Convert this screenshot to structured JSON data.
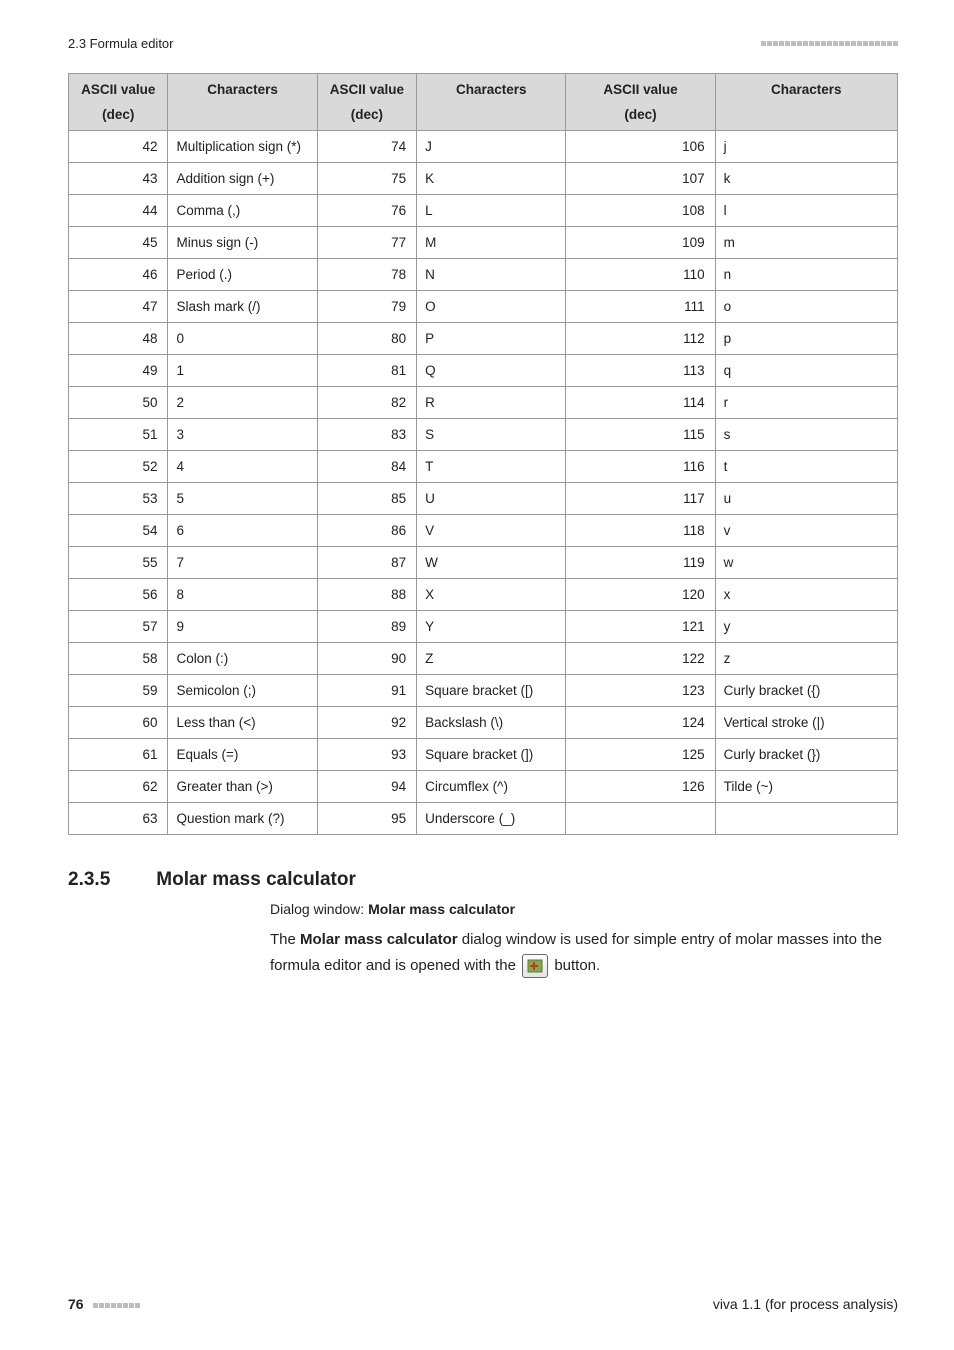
{
  "header": {
    "section_ref": "2.3 Formula editor"
  },
  "table": {
    "headers": {
      "col1_line1": "ASCII value",
      "col1_line2": "(dec)",
      "col2": "Characters",
      "col3_line1": "ASCII value",
      "col3_line2": "(dec)",
      "col4": "Characters",
      "col5_line1": "ASCII value",
      "col5_line2": "(dec)",
      "col6": "Characters"
    },
    "rows": [
      {
        "a": "42",
        "b": "Multiplication sign (*)",
        "c": "74",
        "d": "J",
        "e": "106",
        "f": "j"
      },
      {
        "a": "43",
        "b": "Addition sign (+)",
        "c": "75",
        "d": "K",
        "e": "107",
        "f": "k"
      },
      {
        "a": "44",
        "b": "Comma (,)",
        "c": "76",
        "d": "L",
        "e": "108",
        "f": "l"
      },
      {
        "a": "45",
        "b": "Minus sign (-)",
        "c": "77",
        "d": "M",
        "e": "109",
        "f": "m"
      },
      {
        "a": "46",
        "b": "Period (.)",
        "c": "78",
        "d": "N",
        "e": "110",
        "f": "n"
      },
      {
        "a": "47",
        "b": "Slash mark (/)",
        "c": "79",
        "d": "O",
        "e": "111",
        "f": "o"
      },
      {
        "a": "48",
        "b": "0",
        "c": "80",
        "d": "P",
        "e": "112",
        "f": "p"
      },
      {
        "a": "49",
        "b": "1",
        "c": "81",
        "d": "Q",
        "e": "113",
        "f": "q"
      },
      {
        "a": "50",
        "b": "2",
        "c": "82",
        "d": "R",
        "e": "114",
        "f": "r"
      },
      {
        "a": "51",
        "b": "3",
        "c": "83",
        "d": "S",
        "e": "115",
        "f": "s"
      },
      {
        "a": "52",
        "b": "4",
        "c": "84",
        "d": "T",
        "e": "116",
        "f": "t"
      },
      {
        "a": "53",
        "b": "5",
        "c": "85",
        "d": "U",
        "e": "117",
        "f": "u"
      },
      {
        "a": "54",
        "b": "6",
        "c": "86",
        "d": "V",
        "e": "118",
        "f": "v"
      },
      {
        "a": "55",
        "b": "7",
        "c": "87",
        "d": "W",
        "e": "119",
        "f": "w"
      },
      {
        "a": "56",
        "b": "8",
        "c": "88",
        "d": "X",
        "e": "120",
        "f": "x"
      },
      {
        "a": "57",
        "b": "9",
        "c": "89",
        "d": "Y",
        "e": "121",
        "f": "y"
      },
      {
        "a": "58",
        "b": "Colon (:)",
        "c": "90",
        "d": "Z",
        "e": "122",
        "f": "z"
      },
      {
        "a": "59",
        "b": "Semicolon (;)",
        "c": "91",
        "d": "Square bracket ([)",
        "e": "123",
        "f": "Curly bracket ({)"
      },
      {
        "a": "60",
        "b": "Less than (<)",
        "c": "92",
        "d": "Backslash (\\)",
        "e": "124",
        "f": "Vertical stroke (|)"
      },
      {
        "a": "61",
        "b": "Equals (=)",
        "c": "93",
        "d": "Square bracket (])",
        "e": "125",
        "f": "Curly bracket (})"
      },
      {
        "a": "62",
        "b": "Greater than (>)",
        "c": "94",
        "d": "Circumflex (^)",
        "e": "126",
        "f": "Tilde (~)"
      },
      {
        "a": "63",
        "b": "Question mark (?)",
        "c": "95",
        "d": "Underscore (_)",
        "e": "",
        "f": ""
      }
    ]
  },
  "section": {
    "number": "2.3.5",
    "title": "Molar mass calculator",
    "dialog_prefix": "Dialog window: ",
    "dialog_name": "Molar mass calculator",
    "para_a": "The ",
    "para_b": "Molar mass calculator",
    "para_c": " dialog window is used for simple entry of molar masses into the formula editor and is opened with the ",
    "para_d": " button."
  },
  "footer": {
    "page": "76",
    "doc": "viva 1.1 (for process analysis)"
  },
  "icon": {
    "name": "molar-mass-icon"
  }
}
